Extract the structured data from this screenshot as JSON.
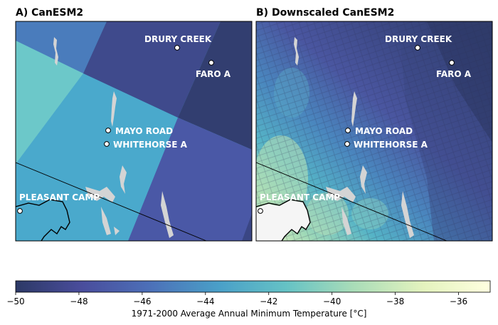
{
  "panels": {
    "a": {
      "title": "A) CanESM2"
    },
    "b": {
      "title": "B) Downscaled CanESM2"
    }
  },
  "stations": [
    {
      "id": "drury",
      "name": "DRURY CREEK"
    },
    {
      "id": "faro",
      "name": "FARO A"
    },
    {
      "id": "mayo",
      "name": "MAYO ROAD"
    },
    {
      "id": "whitehorse",
      "name": "WHITEHORSE A"
    },
    {
      "id": "pleasant",
      "name": "PLEASANT CAMP"
    }
  ],
  "colorbar": {
    "label": "1971-2000 Average Annual Minimum Temperature [°C]",
    "min": -50,
    "max": -35,
    "ticks": [
      "−50",
      "−48",
      "−46",
      "−44",
      "−42",
      "−40",
      "−38",
      "−36"
    ],
    "colors": [
      "#2c3966",
      "#4a4d9c",
      "#4c6fb8",
      "#4aa0c8",
      "#65c2c5",
      "#a8dcb8",
      "#e4f3be",
      "#ffffe0"
    ]
  }
}
